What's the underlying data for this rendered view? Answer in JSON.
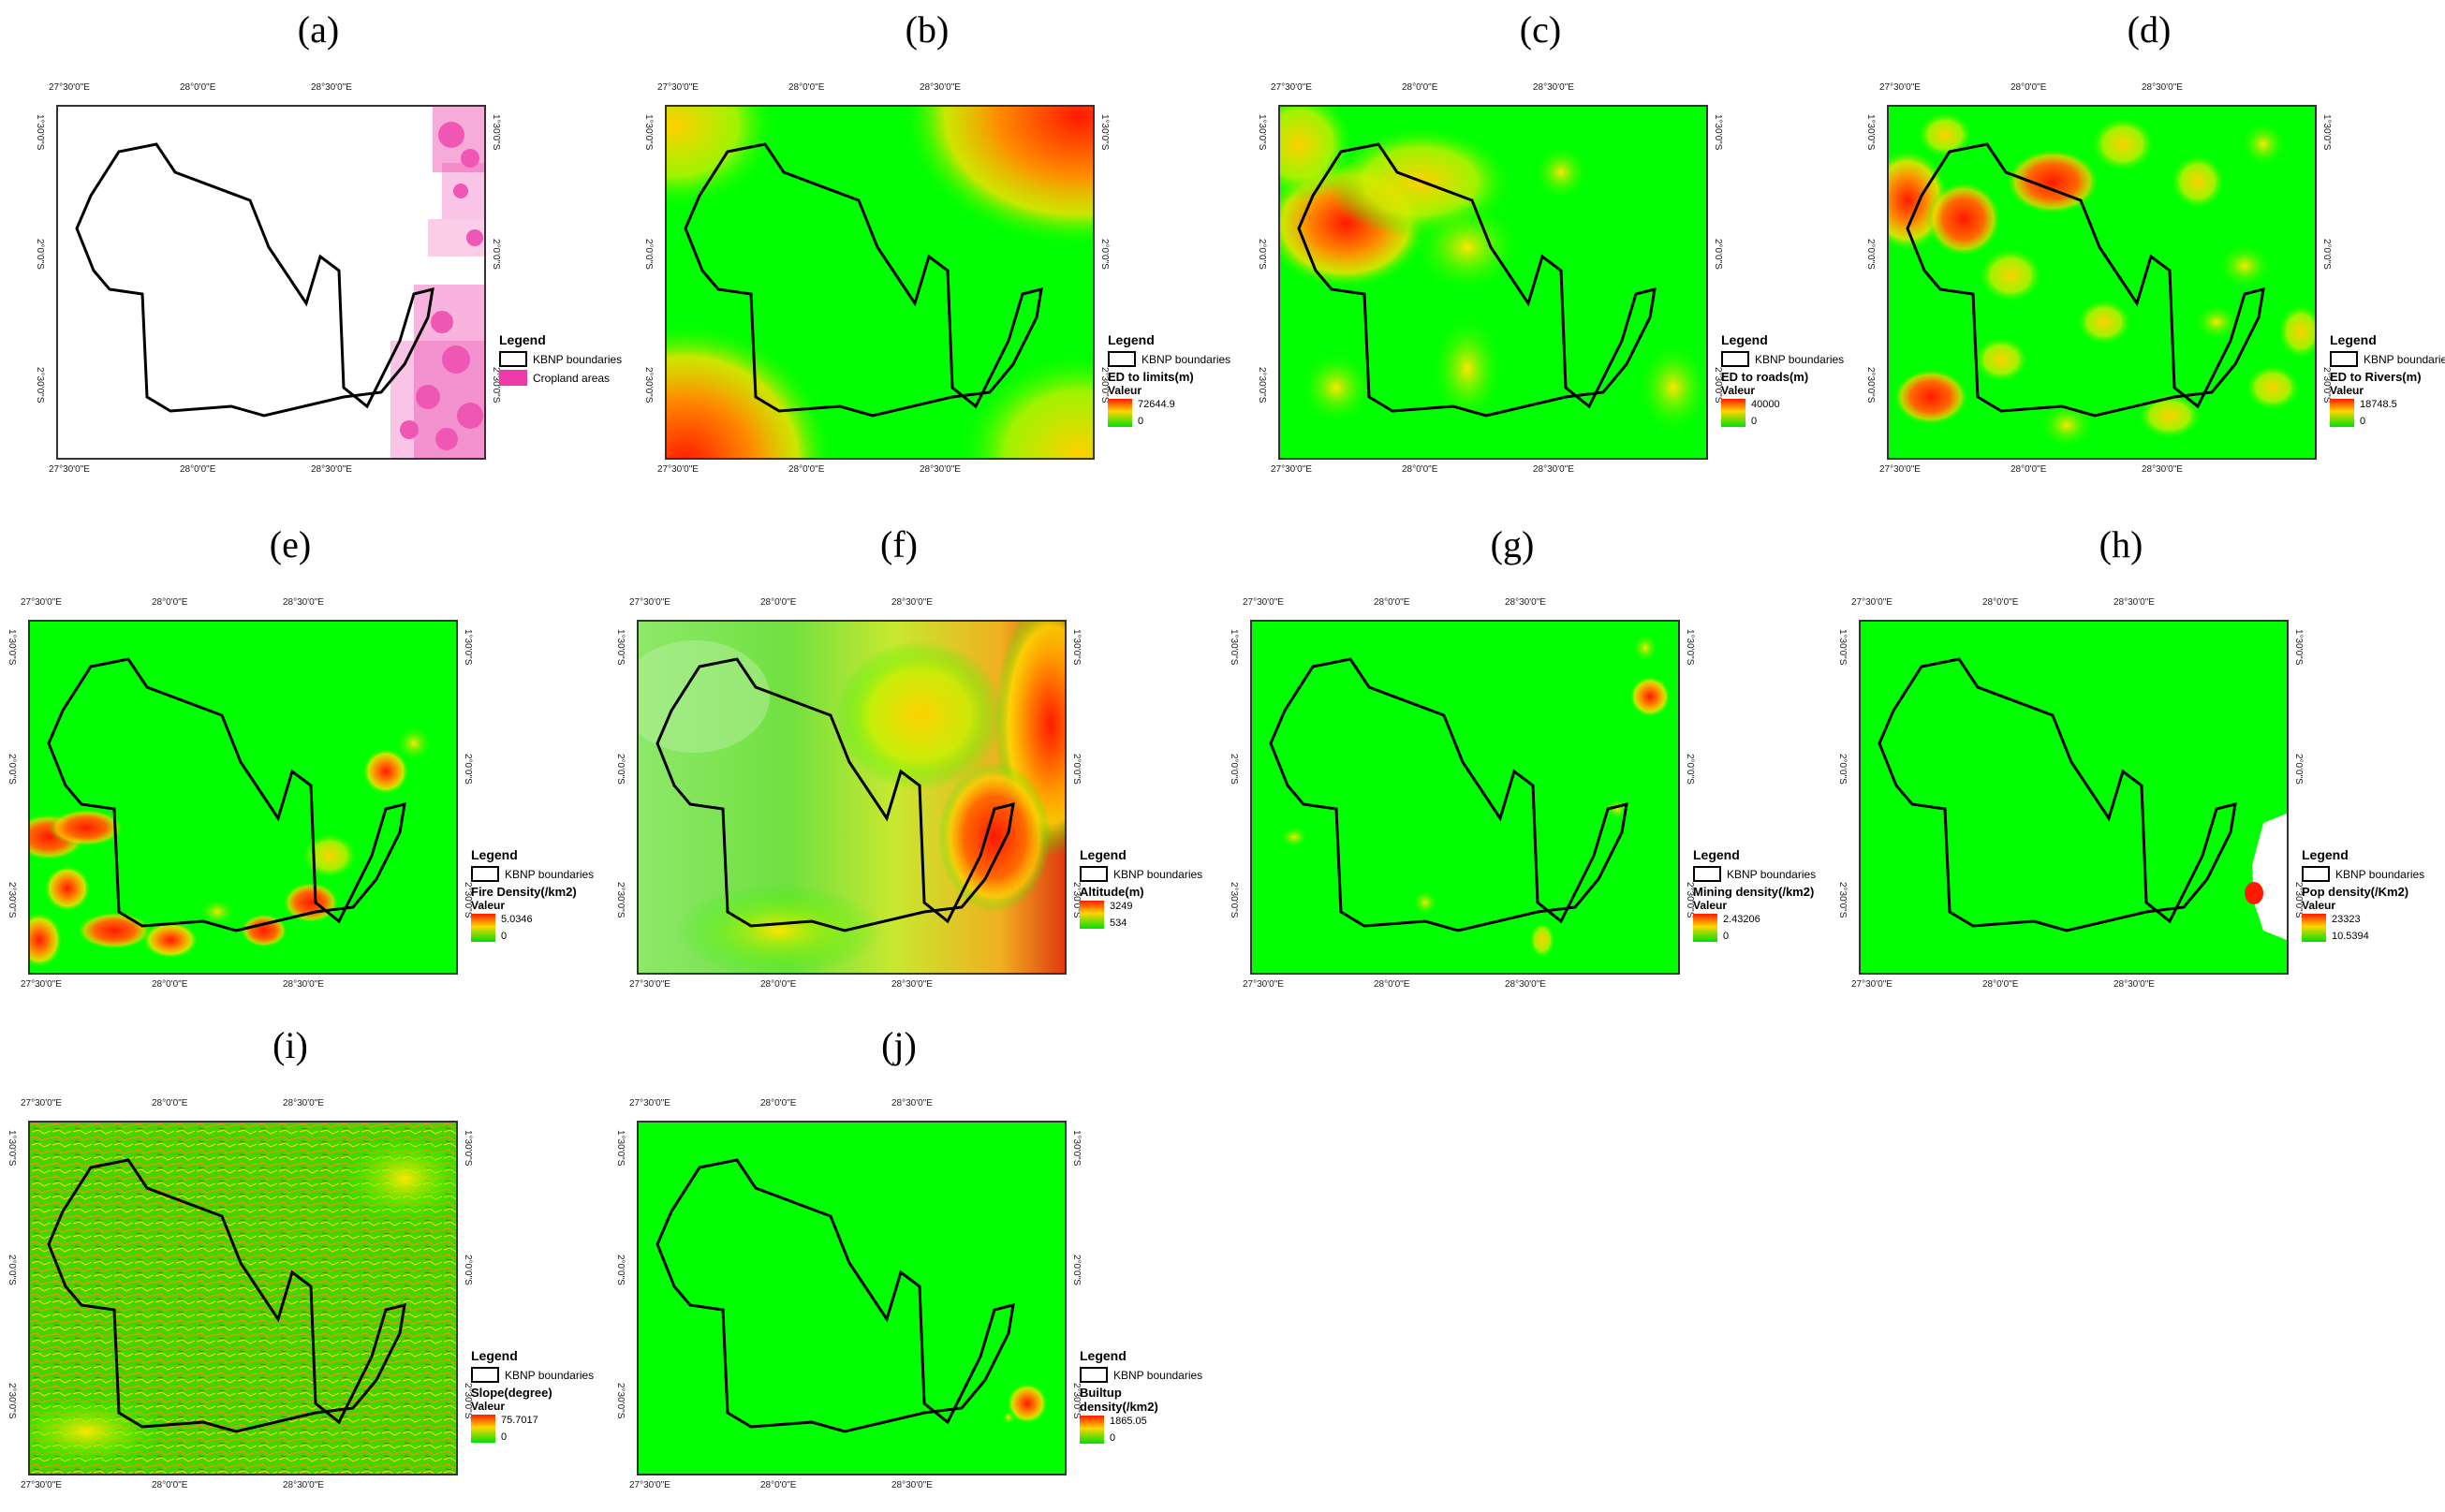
{
  "ticks": {
    "top": [
      "27°30'0\"E",
      "28°0'0\"E",
      "28°30'0\"E"
    ],
    "bottom": [
      "27°30'0\"E",
      "28°0'0\"E",
      "28°30'0\"E"
    ],
    "left": [
      "1°30'0\"S",
      "2°0'0\"S",
      "2°30'0\"S"
    ],
    "right": [
      "1°30'0\"S",
      "2°0'0\"S",
      "2°30'0\"S"
    ]
  },
  "legend_common": {
    "title": "Legend",
    "boundary_label": "KBNP boundaries",
    "valeur": "Valeur"
  },
  "colors": {
    "low": "#00e000",
    "mid": "#ffd500",
    "high": "#ff1a00",
    "cropland": "#ee3aa8"
  },
  "panels": [
    {
      "id": "a",
      "label": "(a)",
      "type": "cropland",
      "cropland_label": "Cropland areas"
    },
    {
      "id": "b",
      "label": "(b)",
      "layer": "ED to limits(m)",
      "max": "72644.9",
      "min": "0"
    },
    {
      "id": "c",
      "label": "(c)",
      "layer": "ED to roads(m)",
      "max": "40000",
      "min": "0"
    },
    {
      "id": "d",
      "label": "(d)",
      "layer": "ED to Rivers(m)",
      "max": "18748.5",
      "min": "0"
    },
    {
      "id": "e",
      "label": "(e)",
      "layer": "Fire Density(/km2)",
      "max": "5.0346",
      "min": "0"
    },
    {
      "id": "f",
      "label": "(f)",
      "layer": "Altitude(m)",
      "max": "3249",
      "min": "534"
    },
    {
      "id": "g",
      "label": "(g)",
      "layer": "Mining density(/km2)",
      "max": "2.43206",
      "min": "0"
    },
    {
      "id": "h",
      "label": "(h)",
      "layer": "Pop density(/Km2)",
      "max": "23323",
      "min": "10.5394"
    },
    {
      "id": "i",
      "label": "(i)",
      "layer": "Slope(degree)",
      "max": "75.7017",
      "min": "0"
    },
    {
      "id": "j",
      "label": "(j)",
      "layer": "Builtup density(/km2)",
      "max": "1865.05",
      "min": "0"
    }
  ]
}
